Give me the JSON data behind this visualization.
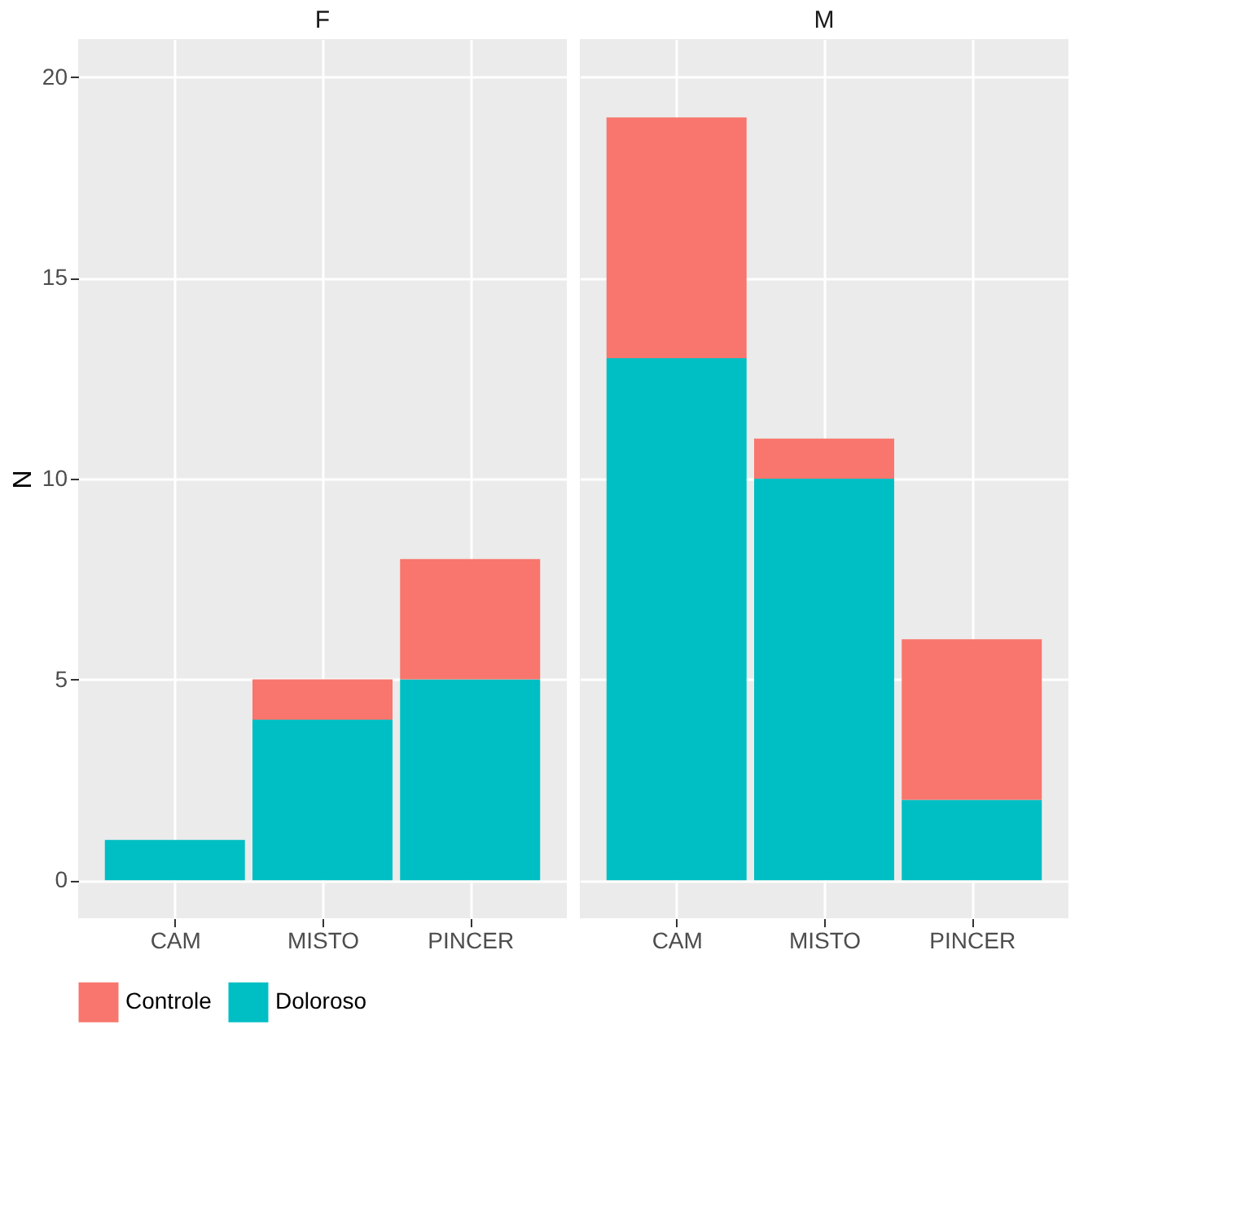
{
  "chart_data": [
    {
      "type": "bar",
      "title": "F",
      "categories": [
        "CAM",
        "MISTO",
        "PINCER"
      ],
      "stacked": true,
      "ylabel": "N",
      "ylim": [
        -0.95,
        20.95
      ],
      "yticks": [
        0,
        5,
        10,
        15,
        20
      ],
      "grid": true,
      "legend": "bottom",
      "series": [
        {
          "name": "Doloroso",
          "color": "#00bfc4",
          "values": [
            1,
            4,
            5
          ]
        },
        {
          "name": "Controle",
          "color": "#f8766d",
          "values": [
            0,
            1,
            3
          ]
        }
      ]
    },
    {
      "type": "bar",
      "title": "M",
      "categories": [
        "CAM",
        "MISTO",
        "PINCER"
      ],
      "stacked": true,
      "ylim": [
        -0.95,
        20.95
      ],
      "yticks": [
        0,
        5,
        10,
        15,
        20
      ],
      "grid": true,
      "tick_labels": "x",
      "series": [
        {
          "name": "Doloroso",
          "color": "#00bfc4",
          "values": [
            13,
            10,
            2
          ]
        },
        {
          "name": "Controle",
          "color": "#f8766d",
          "values": [
            6,
            1,
            4
          ]
        }
      ]
    }
  ]
}
